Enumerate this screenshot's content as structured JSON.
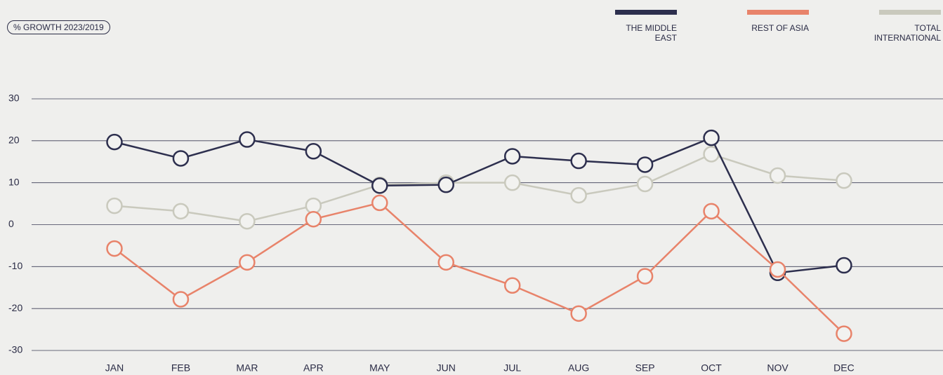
{
  "chart_data": {
    "type": "line",
    "subtitle": "% GROWTH 2023/2019",
    "categories": [
      "JAN",
      "FEB",
      "MAR",
      "APR",
      "MAY",
      "JUN",
      "JUL",
      "AUG",
      "SEP",
      "OCT",
      "NOV",
      "DEC"
    ],
    "series": [
      {
        "name": "THE MIDDLE EAST",
        "color": "#2d2f4e",
        "values": [
          19.7,
          15.8,
          20.3,
          17.5,
          9.3,
          9.5,
          16.3,
          15.2,
          14.3,
          20.7,
          -11.5,
          -9.7
        ]
      },
      {
        "name": "REST OF ASIA",
        "color": "#e8836a",
        "values": [
          -5.7,
          -17.8,
          -9,
          1.3,
          5.2,
          -9,
          -14.5,
          -21.2,
          -12.3,
          3.2,
          -10.7,
          -26
        ]
      },
      {
        "name": "TOTAL INTERNATIONAL",
        "color": "#c9c9bd",
        "values": [
          4.5,
          3.2,
          0.8,
          4.5,
          9.5,
          10,
          10,
          7,
          9.7,
          16.8,
          11.7,
          10.5
        ]
      }
    ],
    "ylim": [
      -30,
      30
    ],
    "yticks": [
      -30,
      -20,
      -10,
      0,
      10,
      20,
      30
    ],
    "grid": true
  }
}
